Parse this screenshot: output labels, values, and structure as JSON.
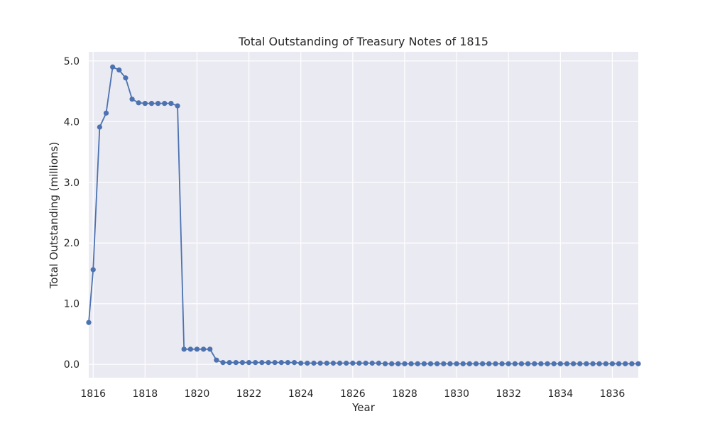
{
  "chart_data": {
    "type": "line",
    "title": "Total Outstanding of Treasury Notes of 1815",
    "xlabel": "Year",
    "ylabel": "Total Outstanding (millions)",
    "xlim": [
      1815.83,
      1837.0
    ],
    "ylim": [
      -0.22,
      5.15
    ],
    "grid": true,
    "x_ticks": [
      "1816",
      "1818",
      "1820",
      "1822",
      "1824",
      "1826",
      "1828",
      "1830",
      "1832",
      "1834",
      "1836"
    ],
    "y_ticks": [
      "0.0",
      "1.0",
      "2.0",
      "3.0",
      "4.0",
      "5.0"
    ],
    "colors": {
      "line": "#4c72b0",
      "background": "#eaeaf2",
      "grid": "#ffffff"
    },
    "series": [
      {
        "x": [
          1815.83,
          1816.0,
          1816.25,
          1816.5,
          1816.75,
          1817.0,
          1817.25,
          1817.5,
          1817.75,
          1818.0,
          1818.25,
          1818.5,
          1818.75,
          1819.0,
          1819.25,
          1819.5,
          1819.75,
          1820.0,
          1820.25,
          1820.5,
          1820.75,
          1821.0,
          1821.25,
          1821.5,
          1821.75,
          1822.0,
          1822.25,
          1822.5,
          1822.75,
          1823.0,
          1823.25,
          1823.5,
          1823.75,
          1824.0,
          1824.25,
          1824.5,
          1824.75,
          1825.0,
          1825.25,
          1825.5,
          1825.75,
          1826.0,
          1826.25,
          1826.5,
          1826.75,
          1827.0,
          1827.25,
          1827.5,
          1827.75,
          1828.0,
          1828.25,
          1828.5,
          1828.75,
          1829.0,
          1829.25,
          1829.5,
          1829.75,
          1830.0,
          1830.25,
          1830.5,
          1830.75,
          1831.0,
          1831.25,
          1831.5,
          1831.75,
          1832.0,
          1832.25,
          1832.5,
          1832.75,
          1833.0,
          1833.25,
          1833.5,
          1833.75,
          1834.0,
          1834.25,
          1834.5,
          1834.75,
          1835.0,
          1835.25,
          1835.5,
          1835.75,
          1836.0,
          1836.25,
          1836.5,
          1836.75,
          1837.0
        ],
        "values": [
          0.69,
          1.56,
          3.91,
          4.14,
          4.9,
          4.85,
          4.72,
          4.37,
          4.31,
          4.3,
          4.3,
          4.3,
          4.3,
          4.3,
          4.26,
          0.25,
          0.25,
          0.25,
          0.25,
          0.25,
          0.07,
          0.03,
          0.03,
          0.03,
          0.03,
          0.03,
          0.03,
          0.03,
          0.03,
          0.03,
          0.03,
          0.03,
          0.03,
          0.02,
          0.02,
          0.02,
          0.02,
          0.02,
          0.02,
          0.02,
          0.02,
          0.02,
          0.02,
          0.02,
          0.02,
          0.02,
          0.01,
          0.01,
          0.01,
          0.01,
          0.01,
          0.01,
          0.01,
          0.01,
          0.01,
          0.01,
          0.01,
          0.01,
          0.01,
          0.01,
          0.01,
          0.01,
          0.01,
          0.01,
          0.01,
          0.01,
          0.01,
          0.01,
          0.01,
          0.01,
          0.01,
          0.01,
          0.01,
          0.01,
          0.01,
          0.01,
          0.01,
          0.01,
          0.01,
          0.01,
          0.01,
          0.01,
          0.01,
          0.01,
          0.01,
          0.01
        ]
      }
    ]
  }
}
